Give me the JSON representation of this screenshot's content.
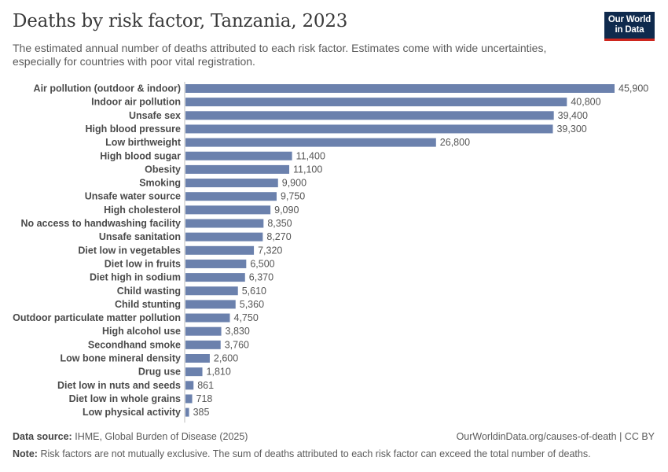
{
  "header": {
    "title": "Deaths by risk factor, Tanzania, 2023",
    "subtitle": "The estimated annual number of deaths attributed to each risk factor. Estimates come with wide uncertainties, especially for countries with poor vital registration.",
    "logo_line1": "Our World",
    "logo_line2": "in Data"
  },
  "footer": {
    "source_label": "Data source:",
    "source_text": "IHME, Global Burden of Disease (2025)",
    "url_text": "OurWorldinData.org/causes-of-death | CC BY",
    "note_label": "Note:",
    "note_text": "Risk factors are not mutually exclusive. The sum of deaths attributed to each risk factor can exceed the total number of deaths."
  },
  "colors": {
    "bar": "#6b81ad",
    "brand": "#0f2a4d",
    "brand_accent": "#ce261e"
  },
  "chart_data": {
    "type": "bar",
    "orientation": "horizontal",
    "title": "Deaths by risk factor, Tanzania, 2023",
    "xlabel": "",
    "ylabel": "",
    "xlim": [
      0,
      45900
    ],
    "grid": false,
    "categories": [
      "Air pollution (outdoor & indoor)",
      "Indoor air pollution",
      "Unsafe sex",
      "High blood pressure",
      "Low birthweight",
      "High blood sugar",
      "Obesity",
      "Smoking",
      "Unsafe water source",
      "High cholesterol",
      "No access to handwashing facility",
      "Unsafe sanitation",
      "Diet low in vegetables",
      "Diet low in fruits",
      "Diet high in sodium",
      "Child wasting",
      "Child stunting",
      "Outdoor particulate matter pollution",
      "High alcohol use",
      "Secondhand smoke",
      "Low bone mineral density",
      "Drug use",
      "Diet low in nuts and seeds",
      "Diet low in whole grains",
      "Low physical activity"
    ],
    "values": [
      45900,
      40800,
      39400,
      39300,
      26800,
      11400,
      11100,
      9900,
      9750,
      9090,
      8350,
      8270,
      7320,
      6500,
      6370,
      5610,
      5360,
      4750,
      3830,
      3760,
      2600,
      1810,
      861,
      718,
      385
    ],
    "value_labels": [
      "45,900",
      "40,800",
      "39,400",
      "39,300",
      "26,800",
      "11,400",
      "11,100",
      "9,900",
      "9,750",
      "9,090",
      "8,350",
      "8,270",
      "7,320",
      "6,500",
      "6,370",
      "5,610",
      "5,360",
      "4,750",
      "3,830",
      "3,760",
      "2,600",
      "1,810",
      "861",
      "718",
      "385"
    ]
  }
}
